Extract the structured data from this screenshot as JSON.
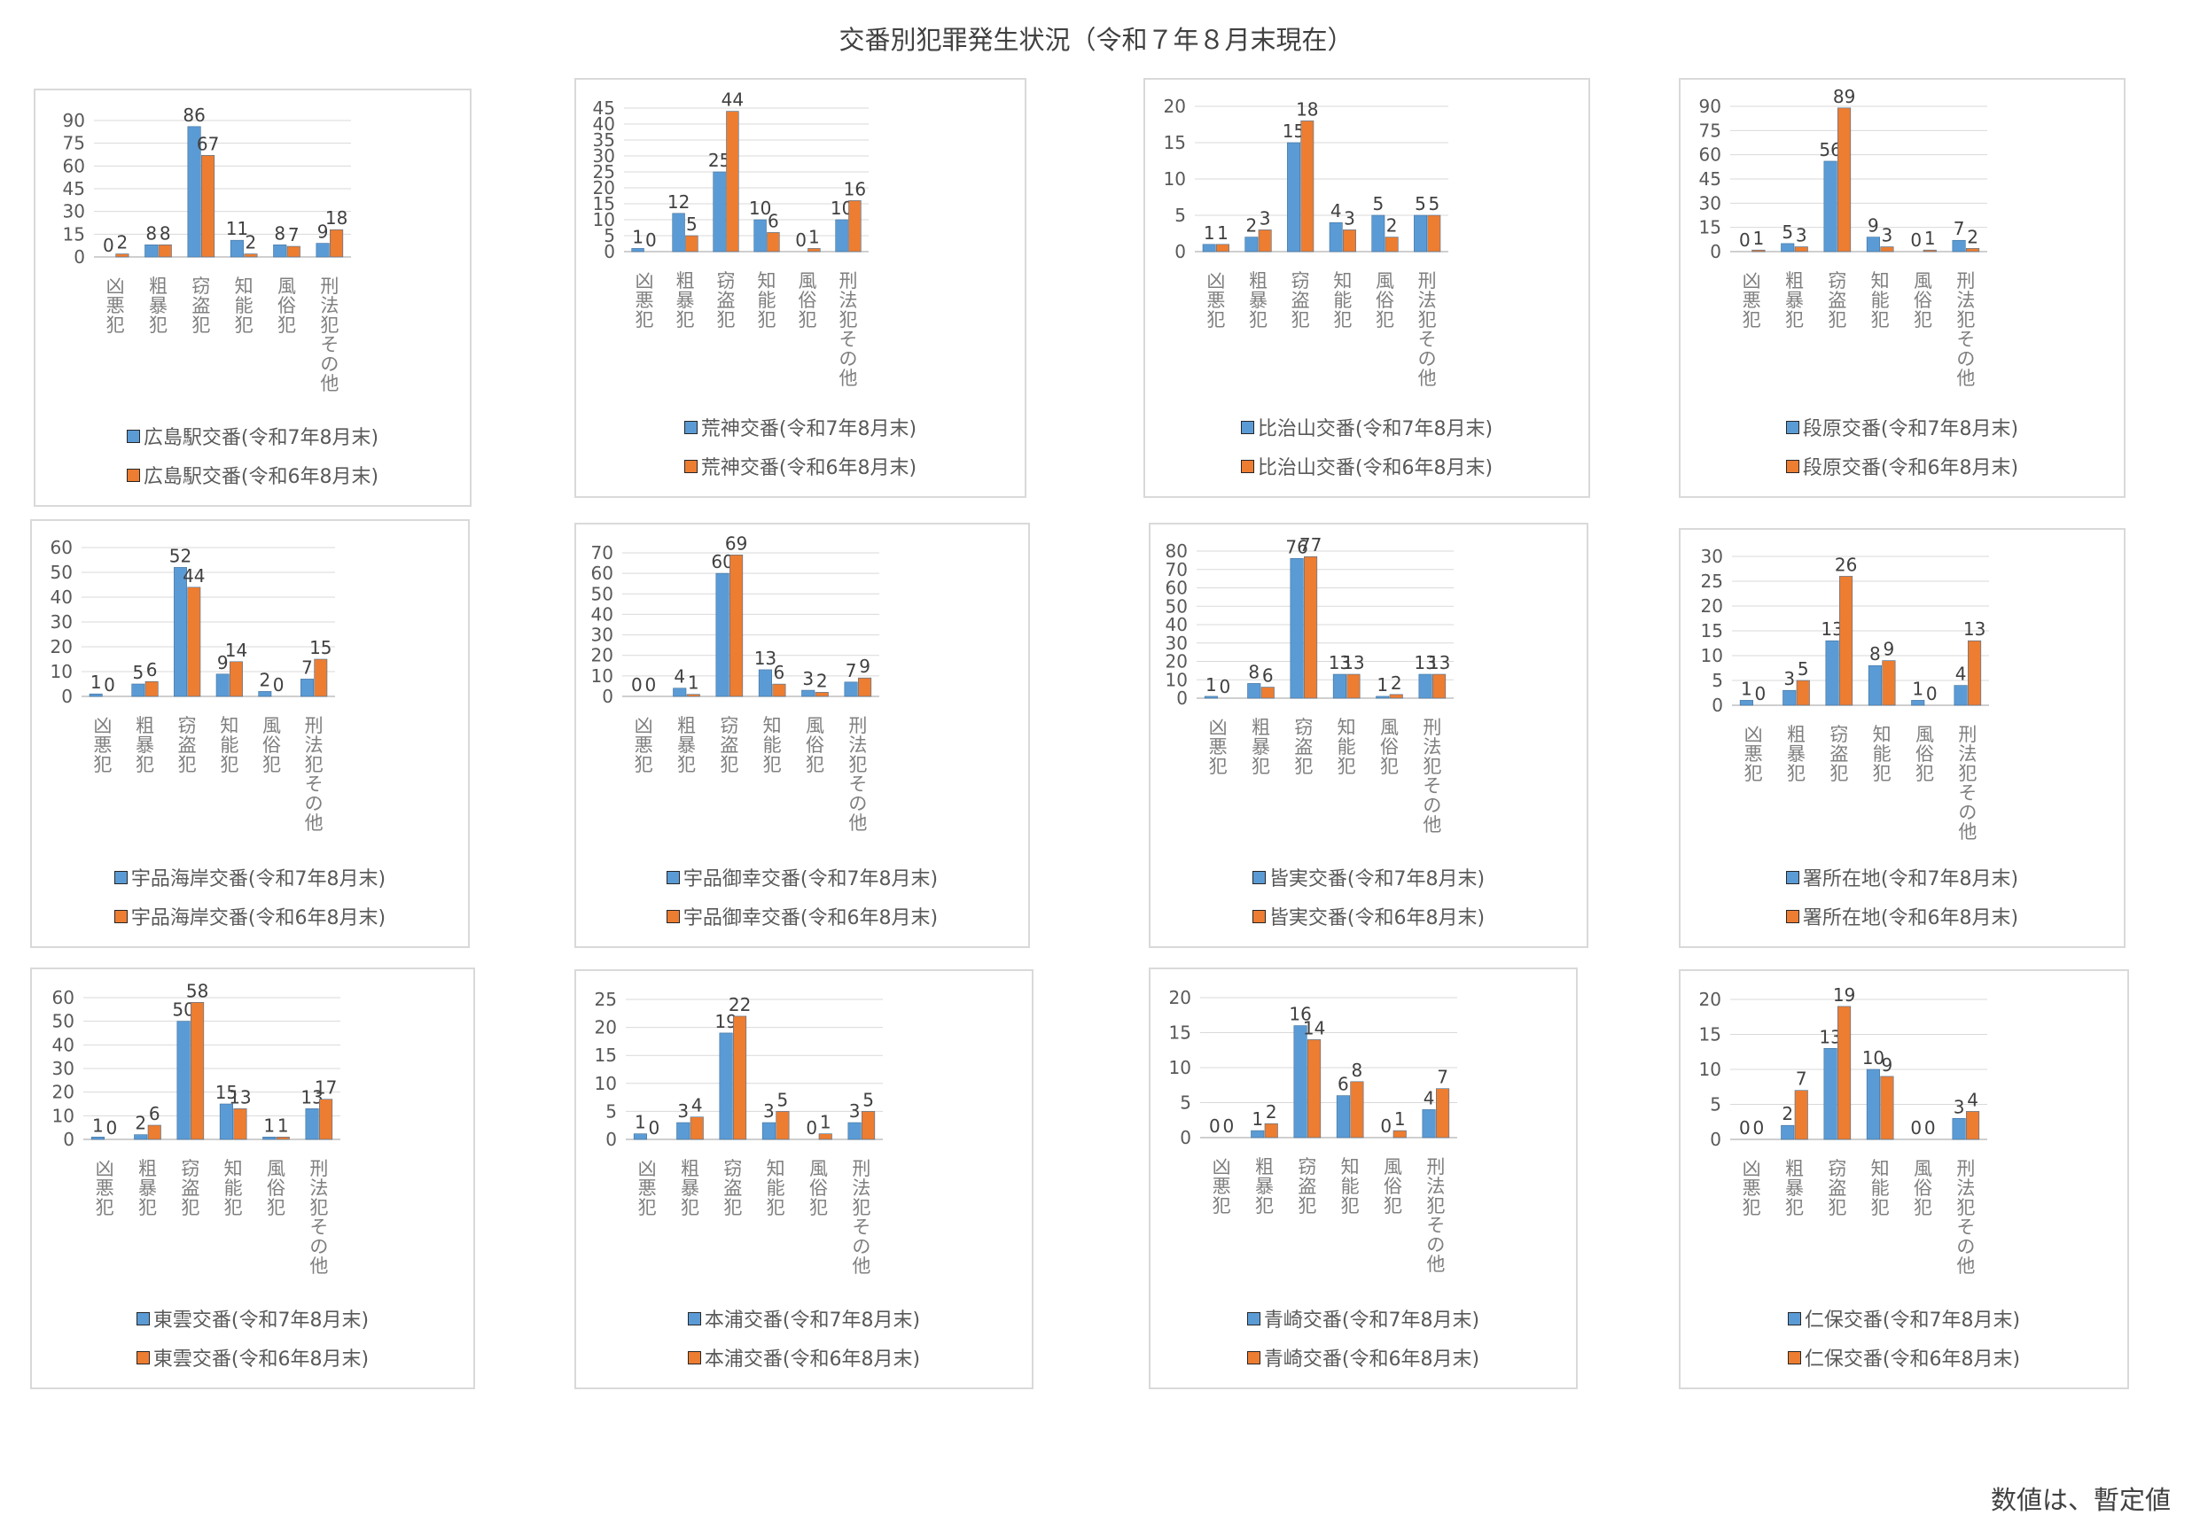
{
  "title": "交番別犯罪発生状況（令和７年８月末現在）",
  "footnote": "数値は、暫定値",
  "colors": {
    "current": "#5b9bd5",
    "previous": "#ed7d31",
    "grid": "#d9d9d9",
    "axis": "#bfbfbf"
  },
  "chart_data": [
    {
      "type": "bar",
      "categories": [
        "凶悪犯",
        "粗暴犯",
        "窃盗犯",
        "知能犯",
        "風俗犯",
        "刑法犯その他"
      ],
      "series": [
        {
          "name": "広島駅交番(令和7年8月末)",
          "values": [
            0,
            8,
            86,
            11,
            8,
            9
          ]
        },
        {
          "name": "広島駅交番(令和6年8月末)",
          "values": [
            2,
            8,
            67,
            2,
            7,
            18
          ]
        }
      ],
      "ylim": [
        0,
        90
      ],
      "yticks": [
        0,
        15,
        30,
        45,
        60,
        75,
        90
      ]
    },
    {
      "type": "bar",
      "categories": [
        "凶悪犯",
        "粗暴犯",
        "窃盗犯",
        "知能犯",
        "風俗犯",
        "刑法犯その他"
      ],
      "series": [
        {
          "name": "荒神交番(令和7年8月末)",
          "values": [
            1,
            12,
            25,
            10,
            0,
            10
          ]
        },
        {
          "name": "荒神交番(令和6年8月末)",
          "values": [
            0,
            5,
            44,
            6,
            1,
            16
          ]
        }
      ],
      "ylim": [
        0,
        45
      ],
      "yticks": [
        0,
        5,
        10,
        15,
        20,
        25,
        30,
        35,
        40,
        45
      ]
    },
    {
      "type": "bar",
      "categories": [
        "凶悪犯",
        "粗暴犯",
        "窃盗犯",
        "知能犯",
        "風俗犯",
        "刑法犯その他"
      ],
      "series": [
        {
          "name": "比治山交番(令和7年8月末)",
          "values": [
            1,
            2,
            15,
            4,
            5,
            5
          ]
        },
        {
          "name": "比治山交番(令和6年8月末)",
          "values": [
            1,
            3,
            18,
            3,
            2,
            5
          ]
        }
      ],
      "ylim": [
        0,
        20
      ],
      "yticks": [
        0,
        5,
        10,
        15,
        20
      ]
    },
    {
      "type": "bar",
      "categories": [
        "凶悪犯",
        "粗暴犯",
        "窃盗犯",
        "知能犯",
        "風俗犯",
        "刑法犯その他"
      ],
      "series": [
        {
          "name": "段原交番(令和7年8月末)",
          "values": [
            0,
            5,
            56,
            9,
            0,
            7
          ]
        },
        {
          "name": "段原交番(令和6年8月末)",
          "values": [
            1,
            3,
            89,
            3,
            1,
            2
          ]
        }
      ],
      "ylim": [
        0,
        90
      ],
      "yticks": [
        0,
        15,
        30,
        45,
        60,
        75,
        90
      ]
    },
    {
      "type": "bar",
      "categories": [
        "凶悪犯",
        "粗暴犯",
        "窃盗犯",
        "知能犯",
        "風俗犯",
        "刑法犯その他"
      ],
      "series": [
        {
          "name": "宇品海岸交番(令和7年8月末)",
          "values": [
            1,
            5,
            52,
            9,
            2,
            7
          ]
        },
        {
          "name": "宇品海岸交番(令和6年8月末)",
          "values": [
            0,
            6,
            44,
            14,
            0,
            15
          ]
        }
      ],
      "ylim": [
        0,
        60
      ],
      "yticks": [
        0,
        10,
        20,
        30,
        40,
        50,
        60
      ]
    },
    {
      "type": "bar",
      "categories": [
        "凶悪犯",
        "粗暴犯",
        "窃盗犯",
        "知能犯",
        "風俗犯",
        "刑法犯その他"
      ],
      "series": [
        {
          "name": "宇品御幸交番(令和7年8月末)",
          "values": [
            0,
            4,
            60,
            13,
            3,
            7
          ]
        },
        {
          "name": "宇品御幸交番(令和6年8月末)",
          "values": [
            0,
            1,
            69,
            6,
            2,
            9
          ]
        }
      ],
      "ylim": [
        0,
        70
      ],
      "yticks": [
        0,
        10,
        20,
        30,
        40,
        50,
        60,
        70
      ]
    },
    {
      "type": "bar",
      "categories": [
        "凶悪犯",
        "粗暴犯",
        "窃盗犯",
        "知能犯",
        "風俗犯",
        "刑法犯その他"
      ],
      "series": [
        {
          "name": "皆実交番(令和7年8月末)",
          "values": [
            1,
            8,
            76,
            13,
            1,
            13
          ]
        },
        {
          "name": "皆実交番(令和6年8月末)",
          "values": [
            0,
            6,
            77,
            13,
            2,
            13
          ]
        }
      ],
      "ylim": [
        0,
        80
      ],
      "yticks": [
        0,
        10,
        20,
        30,
        40,
        50,
        60,
        70,
        80
      ]
    },
    {
      "type": "bar",
      "categories": [
        "凶悪犯",
        "粗暴犯",
        "窃盗犯",
        "知能犯",
        "風俗犯",
        "刑法犯その他"
      ],
      "series": [
        {
          "name": "署所在地(令和7年8月末)",
          "values": [
            1,
            3,
            13,
            8,
            1,
            4
          ]
        },
        {
          "name": "署所在地(令和6年8月末)",
          "values": [
            0,
            5,
            26,
            9,
            0,
            13
          ]
        }
      ],
      "ylim": [
        0,
        30
      ],
      "yticks": [
        0,
        5,
        10,
        15,
        20,
        25,
        30
      ]
    },
    {
      "type": "bar",
      "categories": [
        "凶悪犯",
        "粗暴犯",
        "窃盗犯",
        "知能犯",
        "風俗犯",
        "刑法犯その他"
      ],
      "series": [
        {
          "name": "東雲交番(令和7年8月末)",
          "values": [
            1,
            2,
            50,
            15,
            1,
            13
          ]
        },
        {
          "name": "東雲交番(令和6年8月末)",
          "values": [
            0,
            6,
            58,
            13,
            1,
            17
          ]
        }
      ],
      "ylim": [
        0,
        60
      ],
      "yticks": [
        0,
        10,
        20,
        30,
        40,
        50,
        60
      ]
    },
    {
      "type": "bar",
      "categories": [
        "凶悪犯",
        "粗暴犯",
        "窃盗犯",
        "知能犯",
        "風俗犯",
        "刑法犯その他"
      ],
      "series": [
        {
          "name": "本浦交番(令和7年8月末)",
          "values": [
            1,
            3,
            19,
            3,
            0,
            3
          ]
        },
        {
          "name": "本浦交番(令和6年8月末)",
          "values": [
            0,
            4,
            22,
            5,
            1,
            5
          ]
        }
      ],
      "ylim": [
        0,
        25
      ],
      "yticks": [
        0,
        5,
        10,
        15,
        20,
        25
      ]
    },
    {
      "type": "bar",
      "categories": [
        "凶悪犯",
        "粗暴犯",
        "窃盗犯",
        "知能犯",
        "風俗犯",
        "刑法犯その他"
      ],
      "series": [
        {
          "name": "青崎交番(令和7年8月末)",
          "values": [
            0,
            1,
            16,
            6,
            0,
            4
          ]
        },
        {
          "name": "青崎交番(令和6年8月末)",
          "values": [
            0,
            2,
            14,
            8,
            1,
            7
          ]
        }
      ],
      "ylim": [
        0,
        20
      ],
      "yticks": [
        0,
        5,
        10,
        15,
        20
      ]
    },
    {
      "type": "bar",
      "categories": [
        "凶悪犯",
        "粗暴犯",
        "窃盗犯",
        "知能犯",
        "風俗犯",
        "刑法犯その他"
      ],
      "series": [
        {
          "name": "仁保交番(令和7年8月末)",
          "values": [
            0,
            2,
            13,
            10,
            0,
            3
          ]
        },
        {
          "name": "仁保交番(令和6年8月末)",
          "values": [
            0,
            7,
            19,
            9,
            0,
            4
          ]
        }
      ],
      "ylim": [
        0,
        20
      ],
      "yticks": [
        0,
        5,
        10,
        15,
        20
      ]
    }
  ]
}
